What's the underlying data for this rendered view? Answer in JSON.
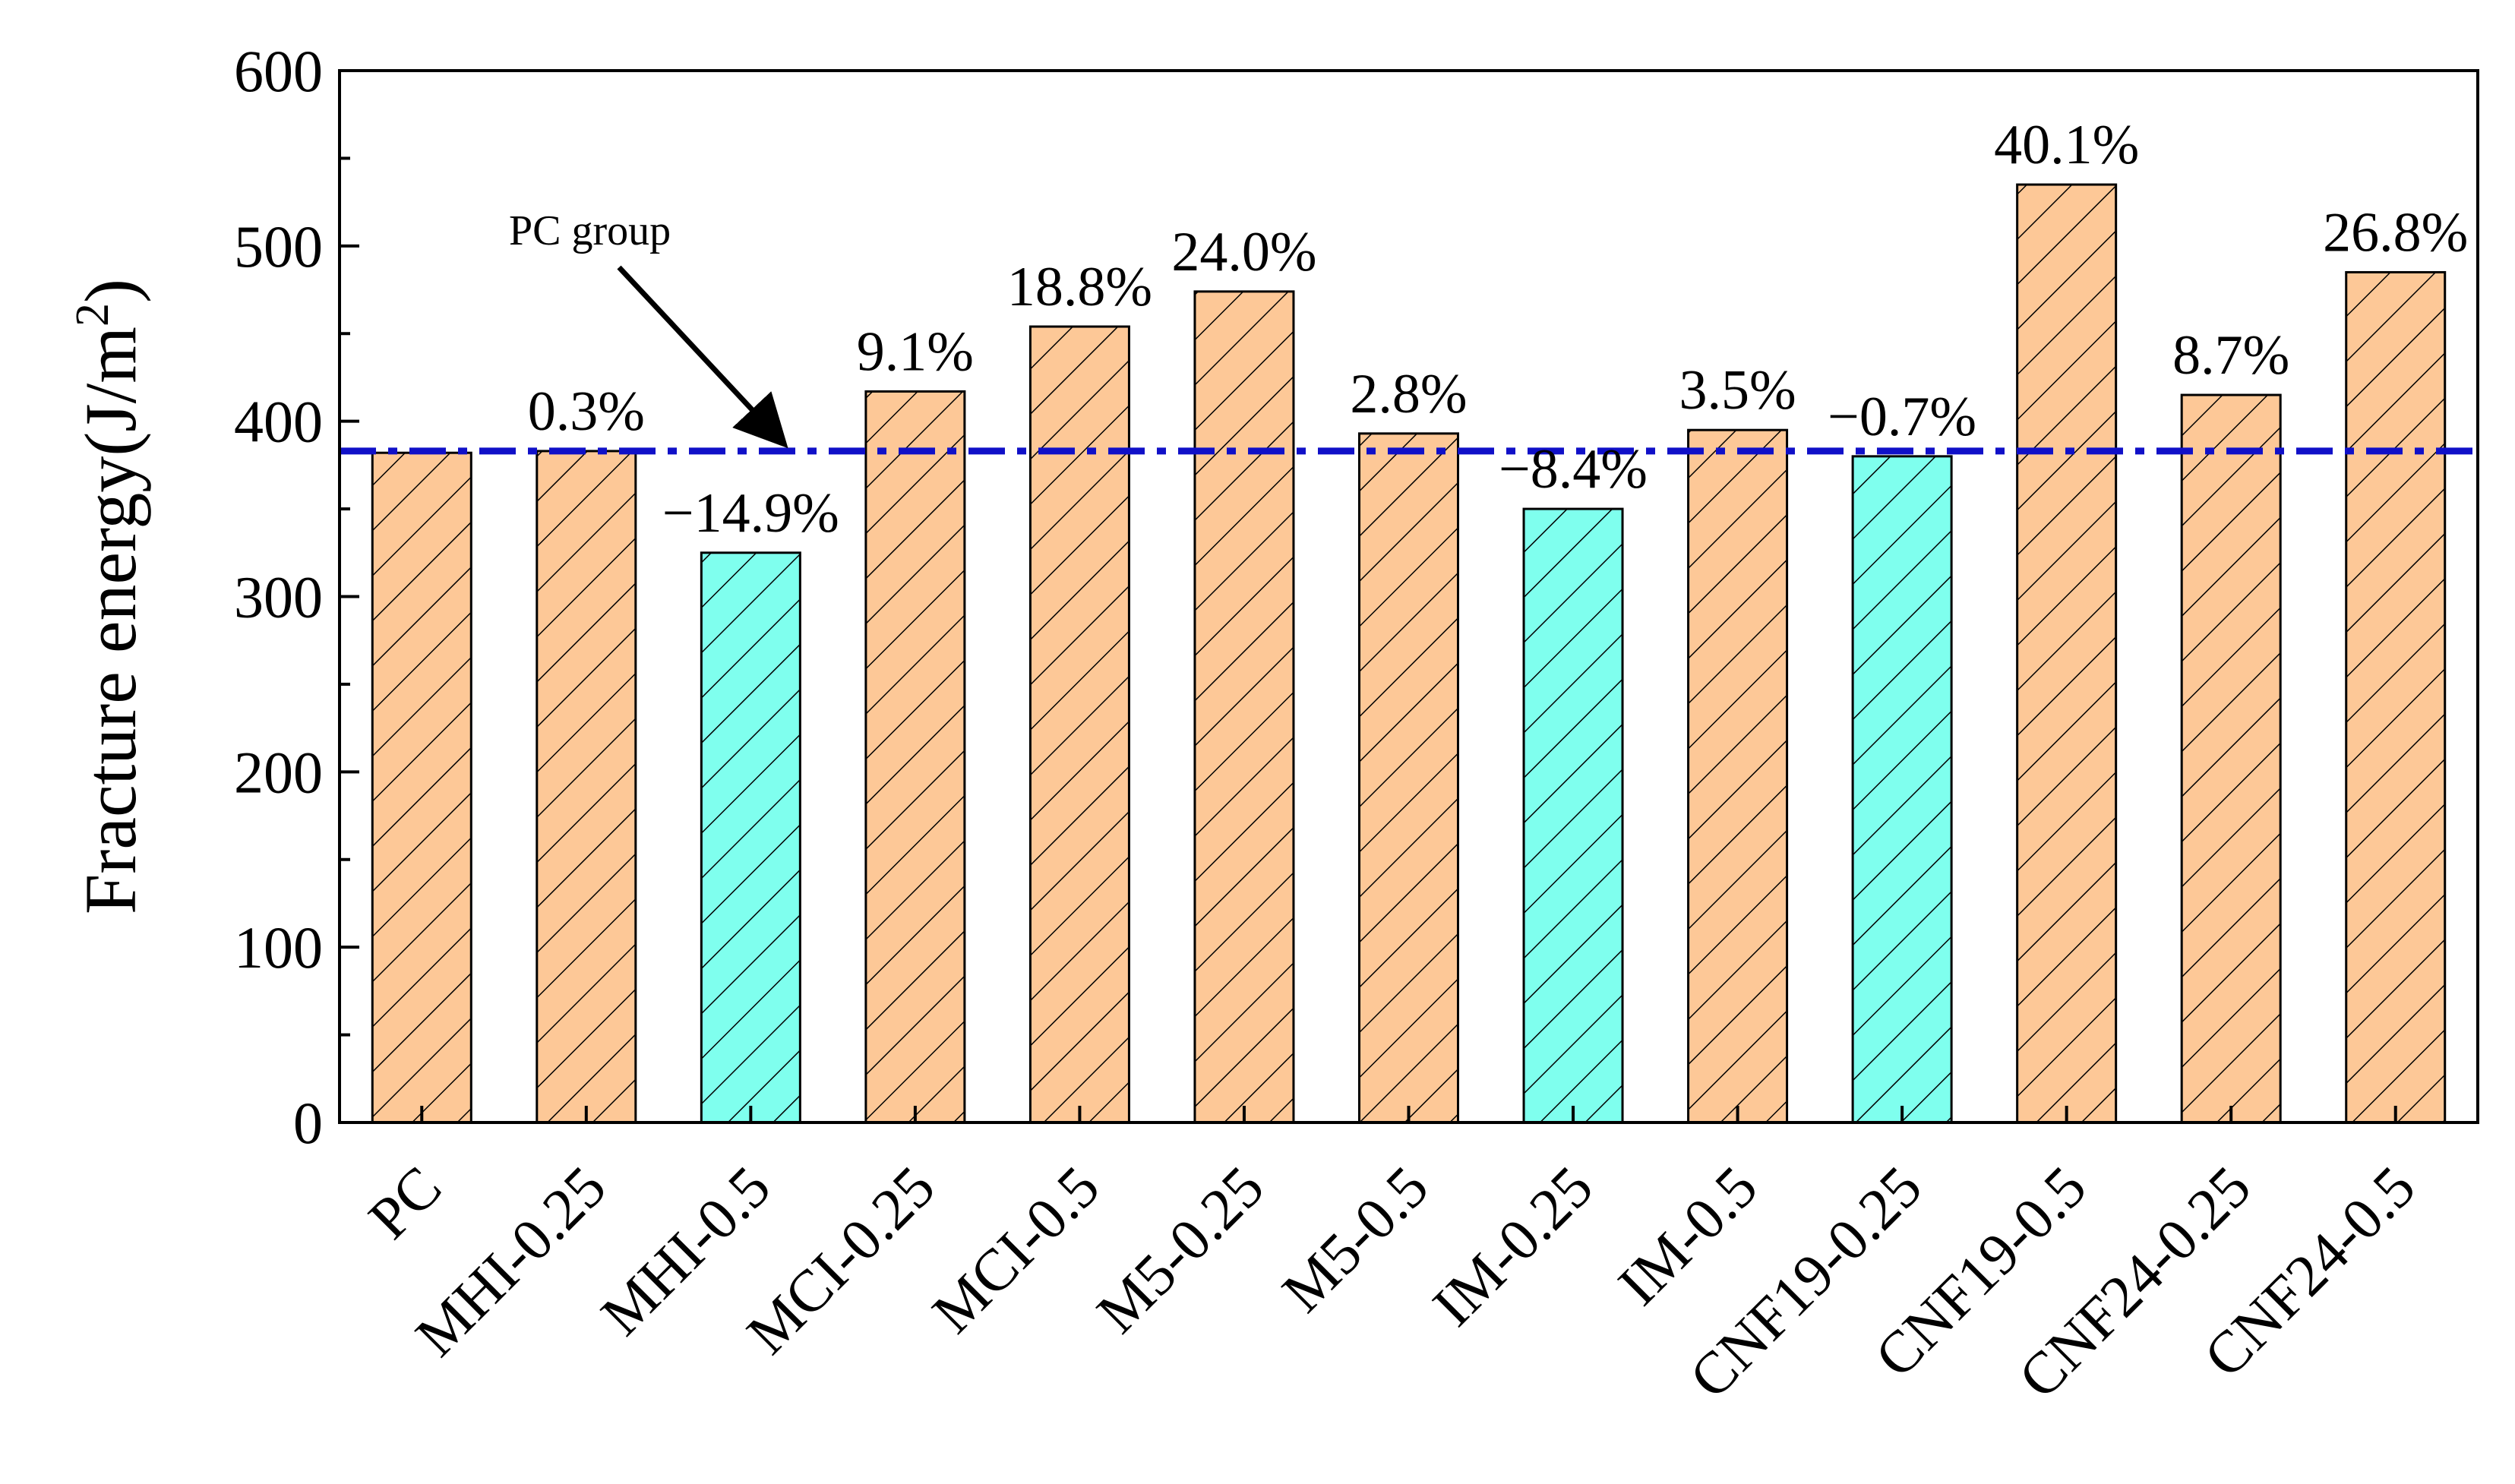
{
  "chart_data": {
    "type": "bar",
    "title": "",
    "xlabel": "",
    "ylabel": "Fracture energy(J/m",
    "ylabel_sup": "2",
    "ylabel_close": ")",
    "ylim": [
      0,
      600
    ],
    "y_ticks": [
      "0",
      "100",
      "200",
      "300",
      "400",
      "500",
      "600"
    ],
    "categories": [
      "PC",
      "MHI-0.25",
      "MHI-0.5",
      "MCI-0.25",
      "MCI-0.5",
      "M5-0.25",
      "M5-0.5",
      "IM-0.25",
      "IM-0.5",
      "CNF19-0.25",
      "CNF19-0.5",
      "CNF24-0.25",
      "CNF24-0.5"
    ],
    "values": [
      382,
      383,
      325,
      417,
      454,
      474,
      393,
      350,
      395,
      380,
      535,
      415,
      485
    ],
    "data_labels": [
      "",
      "0.3%",
      "−14.9%",
      "9.1%",
      "18.8%",
      "24.0%",
      "2.8%",
      "−8.4%",
      "3.5%",
      "−0.7%",
      "40.1%",
      "8.7%",
      "26.8%"
    ],
    "bar_kinds": [
      "increase",
      "increase",
      "decrease",
      "increase",
      "increase",
      "increase",
      "increase",
      "decrease",
      "increase",
      "decrease",
      "increase",
      "increase",
      "increase"
    ],
    "reference_line": {
      "label": "PC group",
      "value": 383
    },
    "colors": {
      "increase": "#FDC897",
      "decrease": "#7FFFEE",
      "reference": "#1010C8",
      "hatch": "#000000",
      "axis": "#000000"
    },
    "hatch": "diagonal"
  }
}
